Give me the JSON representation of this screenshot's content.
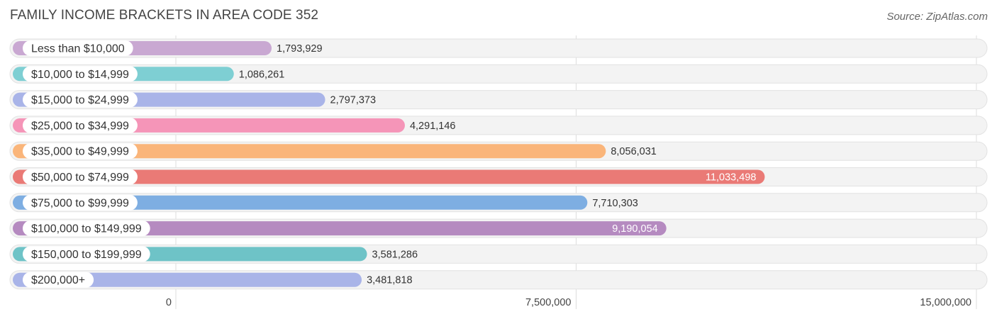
{
  "chart_data": {
    "type": "bar",
    "orientation": "horizontal",
    "title": "FAMILY INCOME BRACKETS IN AREA CODE 352",
    "source": "Source: ZipAtlas.com",
    "categories": [
      "Less than $10,000",
      "$10,000 to $14,999",
      "$15,000 to $24,999",
      "$25,000 to $34,999",
      "$35,000 to $49,999",
      "$50,000 to $74,999",
      "$75,000 to $99,999",
      "$100,000 to $149,999",
      "$150,000 to $199,999",
      "$200,000+"
    ],
    "values": [
      1793929,
      1086261,
      2797373,
      4291146,
      8056031,
      11033498,
      7710303,
      9190054,
      3581286,
      3481818
    ],
    "value_labels": [
      "1,793,929",
      "1,086,261",
      "2,797,373",
      "4,291,146",
      "8,056,031",
      "11,033,498",
      "7,710,303",
      "9,190,054",
      "3,581,286",
      "3,481,818"
    ],
    "colors": [
      "#c9a8d2",
      "#7ecfd3",
      "#a9b4e8",
      "#f595b8",
      "#fab57a",
      "#ea7a76",
      "#7eaee2",
      "#b58ac0",
      "#6ec3c7",
      "#a9b4e8"
    ],
    "value_label_inside": [
      false,
      false,
      false,
      false,
      false,
      true,
      false,
      true,
      false,
      false
    ],
    "xlim": [
      0,
      15000000
    ],
    "ticks": [
      0,
      7500000,
      15000000
    ],
    "tick_labels": [
      "0",
      "7,500,000",
      "15,000,000"
    ],
    "xlabel": "",
    "ylabel": "",
    "grid": true
  }
}
